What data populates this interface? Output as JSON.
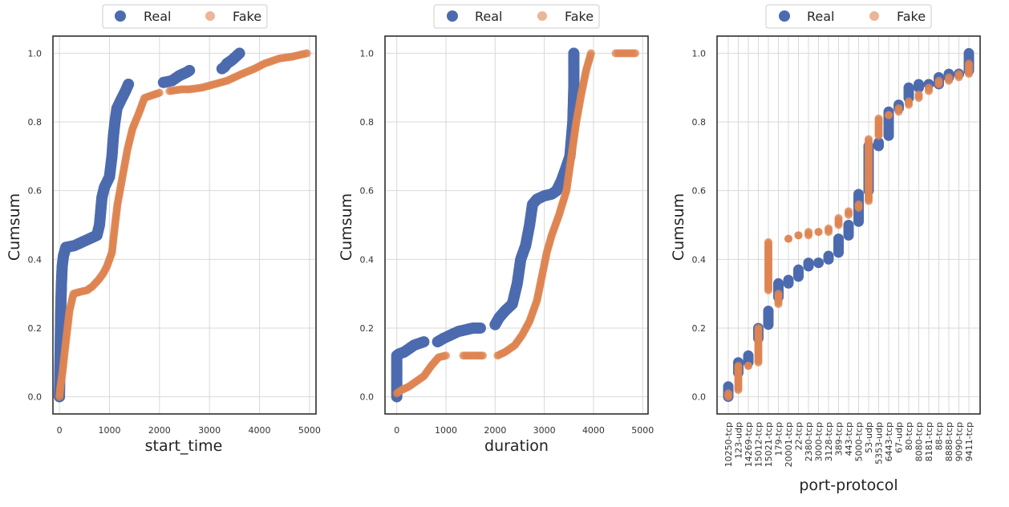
{
  "colors": {
    "real": "#4c6baf",
    "fake": "#dd8452",
    "grid": "#d9d9d9",
    "frame": "#2f2f2f"
  },
  "legend": {
    "real_label": "Real",
    "fake_label": "Fake",
    "placement": "top-center"
  },
  "chart_data": [
    {
      "type": "scatter",
      "xlabel": "start_time",
      "ylabel": "Cumsum",
      "xlim": [
        -130,
        5130
      ],
      "ylim": [
        -0.05,
        1.05
      ],
      "xticks": [
        0,
        1000,
        2000,
        3000,
        4000,
        5000
      ],
      "yticks": [
        0.0,
        0.2,
        0.4,
        0.6,
        0.8,
        1.0
      ],
      "series": [
        {
          "name": "Real",
          "segments": [
            [
              [
                0,
                0.0
              ],
              [
                5,
                0.05
              ],
              [
                15,
                0.15
              ],
              [
                25,
                0.25
              ],
              [
                40,
                0.33
              ],
              [
                55,
                0.38
              ],
              [
                80,
                0.41
              ],
              [
                130,
                0.435
              ]
            ],
            [
              [
                130,
                0.435
              ],
              [
                300,
                0.44
              ],
              [
                450,
                0.45
              ],
              [
                600,
                0.46
              ],
              [
                750,
                0.47
              ],
              [
                800,
                0.5
              ],
              [
                850,
                0.58
              ],
              [
                900,
                0.61
              ],
              [
                1000,
                0.64
              ],
              [
                1050,
                0.7
              ],
              [
                1080,
                0.76
              ],
              [
                1110,
                0.8
              ],
              [
                1150,
                0.84
              ],
              [
                1250,
                0.87
              ],
              [
                1320,
                0.89
              ],
              [
                1380,
                0.91
              ]
            ],
            [
              [
                2080,
                0.915
              ],
              [
                2250,
                0.92
              ],
              [
                2400,
                0.935
              ],
              [
                2550,
                0.945
              ],
              [
                2600,
                0.95
              ]
            ],
            [
              [
                3250,
                0.955
              ],
              [
                3300,
                0.96
              ],
              [
                3350,
                0.97
              ],
              [
                3450,
                0.98
              ],
              [
                3600,
                1.0
              ]
            ]
          ]
        },
        {
          "name": "Fake",
          "segments": [
            [
              [
                0,
                0.0
              ],
              [
                20,
                0.03
              ],
              [
                60,
                0.07
              ],
              [
                120,
                0.15
              ],
              [
                200,
                0.25
              ],
              [
                280,
                0.3
              ],
              [
                400,
                0.305
              ],
              [
                550,
                0.31
              ],
              [
                650,
                0.32
              ],
              [
                780,
                0.34
              ],
              [
                880,
                0.36
              ],
              [
                950,
                0.38
              ],
              [
                1050,
                0.42
              ],
              [
                1110,
                0.5
              ],
              [
                1160,
                0.56
              ],
              [
                1260,
                0.64
              ],
              [
                1360,
                0.72
              ],
              [
                1460,
                0.78
              ],
              [
                1600,
                0.83
              ],
              [
                1700,
                0.87
              ],
              [
                1900,
                0.88
              ],
              [
                2000,
                0.885
              ]
            ],
            [
              [
                2200,
                0.89
              ],
              [
                2450,
                0.895
              ],
              [
                2600,
                0.895
              ],
              [
                2850,
                0.9
              ],
              [
                3100,
                0.91
              ],
              [
                3350,
                0.92
              ],
              [
                3650,
                0.94
              ],
              [
                3900,
                0.955
              ],
              [
                4100,
                0.97
              ],
              [
                4400,
                0.985
              ],
              [
                4650,
                0.99
              ],
              [
                4950,
                1.0
              ]
            ]
          ]
        }
      ]
    },
    {
      "type": "scatter",
      "xlabel": "duration",
      "ylabel": "Cumsum",
      "xlim": [
        -240,
        5110
      ],
      "ylim": [
        -0.05,
        1.05
      ],
      "xticks": [
        0,
        1000,
        2000,
        3000,
        4000,
        5000
      ],
      "yticks": [
        0.0,
        0.2,
        0.4,
        0.6,
        0.8,
        1.0
      ],
      "series": [
        {
          "name": "Real",
          "segments": [
            [
              [
                0,
                0.0
              ],
              [
                0,
                0.05
              ],
              [
                0,
                0.12
              ],
              [
                50,
                0.125
              ],
              [
                150,
                0.13
              ],
              [
                250,
                0.14
              ],
              [
                350,
                0.15
              ],
              [
                450,
                0.155
              ],
              [
                550,
                0.16
              ]
            ],
            [
              [
                830,
                0.16
              ],
              [
                950,
                0.17
              ],
              [
                1100,
                0.18
              ],
              [
                1250,
                0.19
              ],
              [
                1400,
                0.195
              ],
              [
                1550,
                0.2
              ],
              [
                1700,
                0.2
              ]
            ],
            [
              [
                2000,
                0.21
              ],
              [
                2080,
                0.23
              ],
              [
                2200,
                0.25
              ],
              [
                2350,
                0.27
              ],
              [
                2450,
                0.33
              ],
              [
                2520,
                0.4
              ],
              [
                2620,
                0.44
              ],
              [
                2700,
                0.5
              ],
              [
                2760,
                0.56
              ],
              [
                2850,
                0.575
              ],
              [
                3000,
                0.585
              ],
              [
                3150,
                0.59
              ],
              [
                3250,
                0.6
              ],
              [
                3350,
                0.63
              ],
              [
                3450,
                0.67
              ],
              [
                3520,
                0.7
              ],
              [
                3550,
                0.75
              ],
              [
                3580,
                0.8
              ],
              [
                3600,
                0.9
              ],
              [
                3600,
                1.0
              ]
            ]
          ]
        },
        {
          "name": "Fake",
          "segments": [
            [
              [
                0,
                0.01
              ],
              [
                100,
                0.02
              ],
              [
                250,
                0.03
              ],
              [
                400,
                0.045
              ],
              [
                550,
                0.06
              ],
              [
                700,
                0.09
              ],
              [
                850,
                0.115
              ],
              [
                1000,
                0.12
              ]
            ],
            [
              [
                1350,
                0.12
              ],
              [
                1650,
                0.12
              ],
              [
                1750,
                0.12
              ]
            ],
            [
              [
                2050,
                0.12
              ],
              [
                2200,
                0.13
              ],
              [
                2400,
                0.15
              ],
              [
                2550,
                0.18
              ],
              [
                2700,
                0.22
              ],
              [
                2850,
                0.28
              ],
              [
                2950,
                0.35
              ],
              [
                3050,
                0.42
              ],
              [
                3150,
                0.47
              ],
              [
                3300,
                0.53
              ],
              [
                3450,
                0.6
              ],
              [
                3550,
                0.7
              ],
              [
                3650,
                0.8
              ],
              [
                3750,
                0.88
              ],
              [
                3850,
                0.95
              ],
              [
                3950,
                1.0
              ]
            ],
            [
              [
                4450,
                1.0
              ],
              [
                4850,
                1.0
              ]
            ]
          ]
        }
      ]
    },
    {
      "type": "scatter",
      "xlabel": "port-protocol",
      "ylabel": "Cumsum",
      "ylim": [
        -0.05,
        1.05
      ],
      "yticks": [
        0.0,
        0.2,
        0.4,
        0.6,
        0.8,
        1.0
      ],
      "categories": [
        "10250-tcp",
        "123-udp",
        "14269-tcp",
        "15012-tcp",
        "15021-tcp",
        "179-tcp",
        "20001-tcp",
        "22-tcp",
        "2380-tcp",
        "3000-tcp",
        "3128-tcp",
        "389-tcp",
        "443-tcp",
        "5000-tcp",
        "53-udp",
        "5353-udp",
        "6443-tcp",
        "67-udp",
        "80-tcp",
        "8080-tcp",
        "8181-tcp",
        "88-tcp",
        "8888-tcp",
        "9090-tcp",
        "9411-tcp"
      ],
      "series": [
        {
          "name": "Real",
          "ranges": [
            [
              0.0,
              0.03
            ],
            [
              0.07,
              0.1
            ],
            [
              0.1,
              0.12
            ],
            [
              0.17,
              0.2
            ],
            [
              0.21,
              0.25
            ],
            [
              0.29,
              0.33
            ],
            [
              0.33,
              0.34
            ],
            [
              0.35,
              0.37
            ],
            [
              0.38,
              0.39
            ],
            [
              0.39,
              0.39
            ],
            [
              0.4,
              0.41
            ],
            [
              0.42,
              0.46
            ],
            [
              0.47,
              0.5
            ],
            [
              0.51,
              0.59
            ],
            [
              0.6,
              0.73
            ],
            [
              0.73,
              0.74
            ],
            [
              0.76,
              0.83
            ],
            [
              0.84,
              0.85
            ],
            [
              0.87,
              0.9
            ],
            [
              0.9,
              0.91
            ],
            [
              0.91,
              0.91
            ],
            [
              0.91,
              0.93
            ],
            [
              0.93,
              0.94
            ],
            [
              0.94,
              0.94
            ],
            [
              0.95,
              1.0
            ]
          ]
        },
        {
          "name": "Fake",
          "ranges": [
            [
              0.0,
              0.01
            ],
            [
              0.02,
              0.09
            ],
            [
              0.09,
              0.09
            ],
            [
              0.1,
              0.2
            ],
            [
              0.31,
              0.45
            ],
            [
              0.27,
              0.3
            ],
            [
              0.46,
              0.46
            ],
            [
              0.47,
              0.47
            ],
            [
              0.47,
              0.48
            ],
            [
              0.48,
              0.48
            ],
            [
              0.48,
              0.49
            ],
            [
              0.5,
              0.52
            ],
            [
              0.53,
              0.54
            ],
            [
              0.55,
              0.56
            ],
            [
              0.57,
              0.75
            ],
            [
              0.76,
              0.81
            ],
            [
              0.82,
              0.82
            ],
            [
              0.83,
              0.84
            ],
            [
              0.85,
              0.86
            ],
            [
              0.87,
              0.88
            ],
            [
              0.89,
              0.9
            ],
            [
              0.91,
              0.92
            ],
            [
              0.92,
              0.93
            ],
            [
              0.93,
              0.94
            ],
            [
              0.94,
              0.97
            ]
          ]
        }
      ]
    }
  ]
}
